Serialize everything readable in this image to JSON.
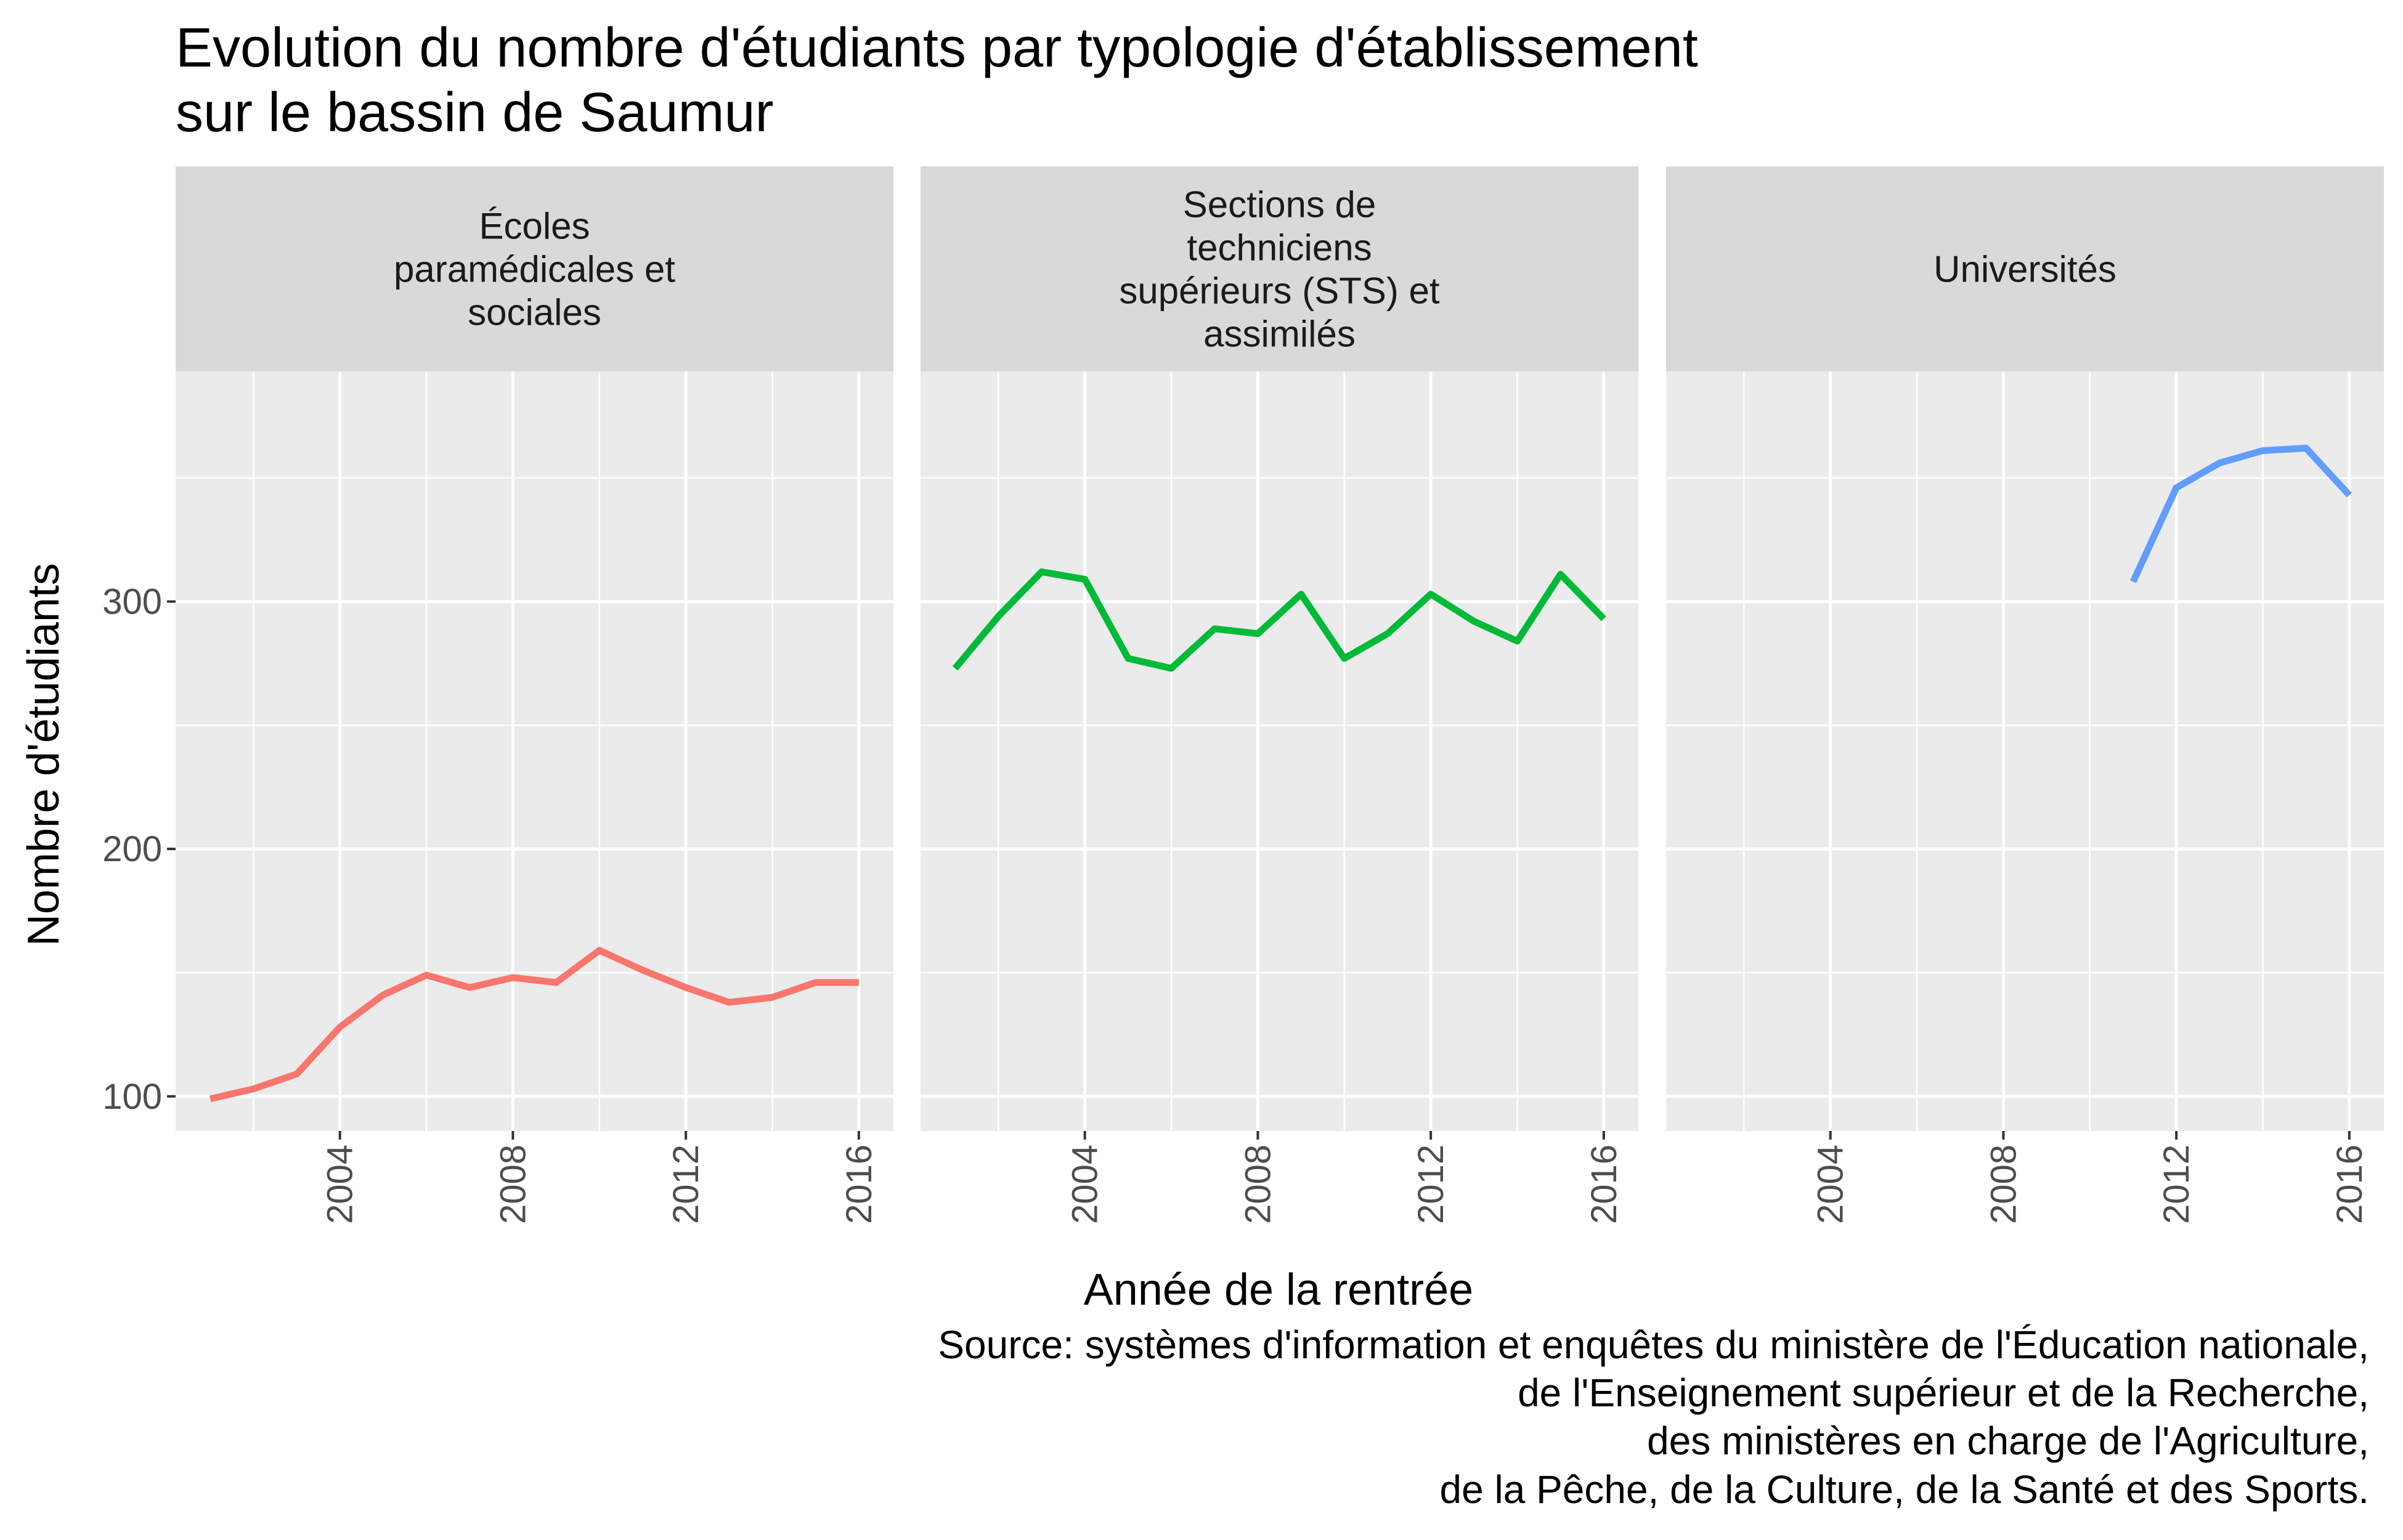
{
  "chart_data": {
    "type": "line",
    "title": [
      "Evolution du nombre d'étudiants par typologie d'établissement",
      "sur  le bassin de Saumur"
    ],
    "xlabel": "Année de la rentrée",
    "ylabel": "Nombre d'étudiants",
    "caption": [
      "Source: systèmes d'information et enquêtes du ministère de l'Éducation nationale,",
      "de l'Enseignement supérieur et de la Recherche,",
      "des ministères en charge de l'Agriculture,",
      "de la Pêche, de la Culture, de la Santé et des Sports."
    ],
    "xlim": [
      2000.2,
      2016.8
    ],
    "ylim": [
      86,
      393
    ],
    "x_ticks": [
      2004,
      2008,
      2012,
      2016
    ],
    "y_ticks": [
      100,
      200,
      300
    ],
    "grid": true,
    "legend": "none",
    "panels": [
      {
        "label": [
          "Écoles",
          "paramédicales et",
          "sociales"
        ],
        "color": "#F8766D",
        "x": [
          2001,
          2002,
          2003,
          2004,
          2005,
          2006,
          2007,
          2008,
          2009,
          2010,
          2011,
          2012,
          2013,
          2014,
          2015,
          2016
        ],
        "y": [
          99,
          103,
          109,
          128,
          141,
          149,
          144,
          148,
          146,
          159,
          151,
          144,
          138,
          140,
          146,
          146
        ]
      },
      {
        "label": [
          "Sections de",
          "techniciens",
          "supérieurs (STS) et",
          "assimilés"
        ],
        "color": "#00BA38",
        "x": [
          2001,
          2002,
          2003,
          2004,
          2005,
          2006,
          2007,
          2008,
          2009,
          2010,
          2011,
          2012,
          2013,
          2014,
          2015,
          2016
        ],
        "y": [
          273,
          294,
          312,
          309,
          277,
          273,
          289,
          287,
          303,
          277,
          287,
          303,
          292,
          284,
          311,
          293
        ]
      },
      {
        "label": [
          "Universités"
        ],
        "color": "#619CFF",
        "x": [
          2011,
          2012,
          2013,
          2014,
          2015,
          2016
        ],
        "y": [
          308,
          346,
          356,
          361,
          362,
          343
        ]
      }
    ]
  }
}
